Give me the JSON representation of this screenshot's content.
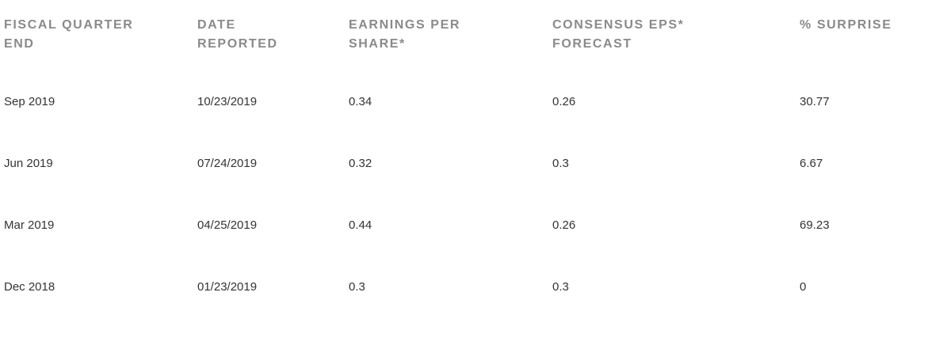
{
  "table": {
    "headers": [
      "FISCAL QUARTER END",
      "DATE REPORTED",
      "EARNINGS PER SHARE*",
      "CONSENSUS EPS* FORECAST",
      "% SURPRISE"
    ],
    "rows": [
      [
        "Sep 2019",
        "10/23/2019",
        "0.34",
        "0.26",
        "30.77"
      ],
      [
        "Jun 2019",
        "07/24/2019",
        "0.32",
        "0.3",
        "6.67"
      ],
      [
        "Mar 2019",
        "04/25/2019",
        "0.44",
        "0.26",
        "69.23"
      ],
      [
        "Dec 2018",
        "01/23/2019",
        "0.3",
        "0.3",
        "0"
      ]
    ]
  }
}
